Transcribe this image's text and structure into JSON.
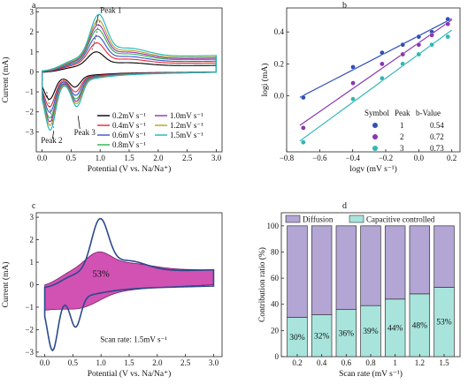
{
  "chart_data": [
    {
      "panel": "a",
      "type": "line",
      "xlabel": "Potential (V vs. Na/Na⁺)",
      "ylabel": "Current (mA)",
      "xlim": [
        -0.1,
        3.1
      ],
      "ylim": [
        -4,
        3.2
      ],
      "xticks": [
        "0.0",
        "0.5",
        "1.0",
        "1.5",
        "2.0",
        "2.5",
        "3.0"
      ],
      "yticks": [
        "−3",
        "−2",
        "−1",
        "0",
        "1",
        "2",
        "3"
      ],
      "legend_columns": 2,
      "series": [
        {
          "name": "0.2mV s⁻¹",
          "color": "#000000",
          "peak1": 0.95
        },
        {
          "name": "0.4mV s⁻¹",
          "color": "#e8262b",
          "peak1": 1.35
        },
        {
          "name": "0.6mV s⁻¹",
          "color": "#3a4fd2",
          "peak1": 1.65
        },
        {
          "name": "0.8mV s⁻¹",
          "color": "#2bb24c",
          "peak1": 1.95
        },
        {
          "name": "1.0mV s⁻¹",
          "color": "#9a2db3",
          "peak1": 2.15
        },
        {
          "name": "1.2mV s⁻¹",
          "color": "#b5a125",
          "peak1": 2.35
        },
        {
          "name": "1.5mV s⁻¹",
          "color": "#1fb4b8",
          "peak1": 2.6
        }
      ],
      "annotations": [
        "Peak 1",
        "Peak 2",
        "Peak 3"
      ]
    },
    {
      "panel": "b",
      "type": "scatter",
      "xlabel": "logv (mV s⁻¹)",
      "ylabel": "logi (mA)",
      "xlim": [
        -0.8,
        0.25
      ],
      "ylim": [
        -0.35,
        0.55
      ],
      "xticks": [
        "−0.8",
        "−0.6",
        "−0.4",
        "−0.2",
        "0.0",
        "0.2"
      ],
      "yticks": [
        "0.0",
        "0.2",
        "0.4"
      ],
      "x": [
        -0.699,
        -0.398,
        -0.222,
        -0.097,
        0.0,
        0.079,
        0.176
      ],
      "series": [
        {
          "name": "1",
          "b_value": "0.54",
          "color": "#2f4fb8",
          "values": [
            -0.01,
            0.18,
            0.27,
            0.32,
            0.37,
            0.4,
            0.48
          ]
        },
        {
          "name": "2",
          "b_value": "0.72",
          "color": "#8a37b0",
          "values": [
            -0.2,
            0.08,
            0.2,
            0.26,
            0.32,
            0.38,
            0.45
          ]
        },
        {
          "name": "3",
          "b_value": "0.73",
          "color": "#2fb7b4",
          "values": [
            -0.29,
            -0.02,
            0.11,
            0.2,
            0.26,
            0.32,
            0.37
          ]
        }
      ],
      "table_header": [
        "Symbol",
        "Peak",
        "b-Value"
      ]
    },
    {
      "panel": "c",
      "type": "line",
      "xlabel": "Potential (V vs. Na/Na⁺)",
      "ylabel": "Current (mA)",
      "xlim": [
        -0.15,
        3.15
      ],
      "ylim": [
        -3.2,
        3.2
      ],
      "xticks": [
        "0.0",
        "0.5",
        "1.0",
        "1.5",
        "2.0",
        "2.5",
        "3.0"
      ],
      "yticks": [
        "−3",
        "−2",
        "−1",
        "0",
        "1",
        "2",
        "3"
      ],
      "fill_label": "53%",
      "annotation": "Scan rate: 1.5mV s⁻¹",
      "colors": {
        "cv": "#2b4a8c",
        "fill": "#c2189a"
      }
    },
    {
      "panel": "d",
      "type": "bar",
      "xlabel": "Scan rate (mV s⁻¹)",
      "ylabel": "Contribution ratio (%)",
      "ylim": [
        0,
        110
      ],
      "yticks": [
        "0",
        "20",
        "40",
        "60",
        "80",
        "100"
      ],
      "categories": [
        "0.2",
        "0.4",
        "0.6",
        "0.8",
        "1",
        "1.2",
        "1.5"
      ],
      "series": [
        {
          "name": "Capacitive controlled",
          "color": "#a8e4dc",
          "values": [
            30,
            32,
            36,
            39,
            44,
            48,
            53
          ]
        },
        {
          "name": "Diffusion",
          "color": "#b3a5d4",
          "values": [
            70,
            68,
            64,
            61,
            56,
            52,
            47
          ]
        }
      ],
      "data_labels": [
        "30%",
        "32%",
        "36%",
        "39%",
        "44%",
        "48%",
        "53%"
      ]
    }
  ]
}
